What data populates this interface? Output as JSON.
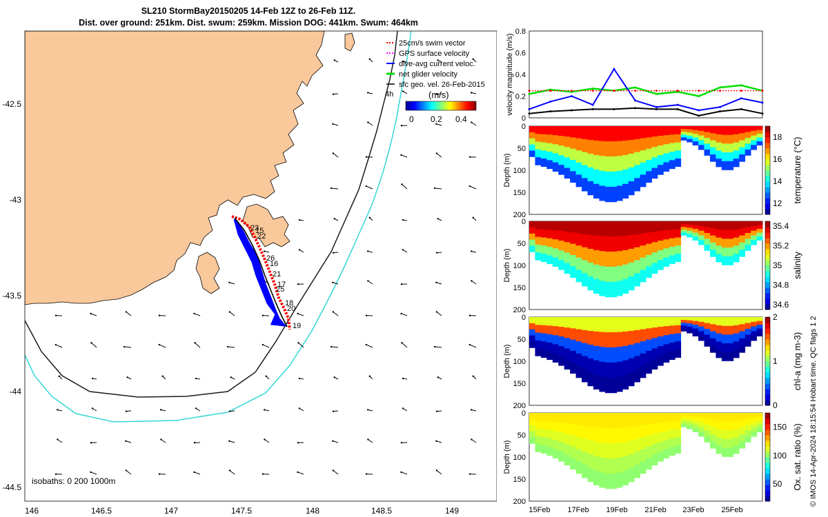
{
  "title": {
    "line1": "SL210 StormBay20150205 14-Feb 12Z to 26-Feb 11Z.",
    "line2": "Dist. over ground: 251km. Dist. swum: 259km. Mission DOG: 441km. Swum: 464km"
  },
  "colors": {
    "land": "#f9c89b",
    "isobath_200": "#1a1a1a",
    "isobath_1000": "#33d6d6",
    "track_red": "#ff0000",
    "track_blue": "#0000ff",
    "track_black": "#000000",
    "velocity_green": "#00dd00",
    "velocity_blue": "#0000ff",
    "velocity_black": "#000000",
    "gps_magenta": "#ff00ff"
  },
  "map": {
    "legend": {
      "swim_vector": "25cm/s swim vector",
      "gps": "GPS surface velocity",
      "dive_avg": "dive-avg current veloc.",
      "net": "net glider velocity",
      "sfc_geo": "sfc geo. vel. 26-Feb-2015",
      "timestamp": "4h"
    },
    "colorbar": {
      "label": "(m/s)",
      "ticks": [
        "0",
        "0.2",
        "0.4"
      ],
      "colormap": "jet"
    },
    "isobath_label": "isobaths: 0   200  1000m",
    "x_ticks": [
      "146",
      "146.5",
      "147",
      "147.5",
      "148",
      "148.5",
      "149"
    ],
    "y_ticks": [
      "-42.5",
      "-43",
      "-43.5",
      "-44",
      "-44.5"
    ],
    "day_labels": [
      "23",
      "15",
      "22",
      "26",
      "16",
      "21",
      "17",
      "25",
      "18",
      "20",
      "19"
    ]
  },
  "chart_data": [
    {
      "type": "line",
      "title": "",
      "ylabel": "velocity magnitude (m/s)",
      "ylim": [
        0,
        0.8
      ],
      "yticks": [
        "0",
        "0.2",
        "0.4",
        "0.6",
        "0.8"
      ],
      "x": [
        "15-Feb",
        "16-Feb",
        "17-Feb",
        "18-Feb",
        "19-Feb",
        "20-Feb",
        "21-Feb",
        "22-Feb",
        "23-Feb",
        "24-Feb",
        "25-Feb",
        "26-Feb"
      ],
      "series": [
        {
          "name": "net glider velocity",
          "color": "#00dd00",
          "values": [
            0.22,
            0.26,
            0.24,
            0.27,
            0.25,
            0.28,
            0.22,
            0.24,
            0.2,
            0.28,
            0.3,
            0.25
          ]
        },
        {
          "name": "dive-avg current veloc.",
          "color": "#0000ff",
          "values": [
            0.08,
            0.15,
            0.2,
            0.12,
            0.45,
            0.16,
            0.1,
            0.12,
            0.07,
            0.1,
            0.18,
            0.14
          ]
        },
        {
          "name": "sfc geo. vel. 26-Feb-2015",
          "color": "#000000",
          "values": [
            0.04,
            0.06,
            0.07,
            0.08,
            0.08,
            0.09,
            0.08,
            0.08,
            0.02,
            0.06,
            0.08,
            0.04
          ]
        },
        {
          "name": "25cm/s swim vector",
          "color": "#ff0000",
          "values": [
            0.25,
            0.25,
            0.25,
            0.25,
            0.25,
            0.25,
            0.25,
            0.25,
            0.25,
            0.25,
            0.25,
            0.25
          ]
        }
      ]
    },
    {
      "type": "heatmap",
      "ylabel": "Depth (m)",
      "yticks": [
        "0",
        "50",
        "100",
        "150",
        "200"
      ],
      "colorbar_label": "temperature (°C)",
      "colorbar_ticks": [
        "12",
        "14",
        "16",
        "18"
      ],
      "clim": [
        11,
        19
      ],
      "values": [
        18,
        17,
        15.5,
        14,
        12.5
      ]
    },
    {
      "type": "heatmap",
      "ylabel": "Depth (m)",
      "yticks": [
        "0",
        "50",
        "100",
        "150",
        "200"
      ],
      "colorbar_label": "salinity",
      "colorbar_ticks": [
        "34.6",
        "34.8",
        "35",
        "35.2",
        "35.4"
      ],
      "clim": [
        34.55,
        35.45
      ],
      "values": [
        35.4,
        35.35,
        35.2,
        35.0,
        34.9
      ]
    },
    {
      "type": "heatmap",
      "ylabel": "Depth (m)",
      "yticks": [
        "0",
        "50",
        "100",
        "150",
        "200"
      ],
      "colorbar_label": "chl-a (mg m-3)",
      "colorbar_ticks": [
        "0",
        "1",
        "2"
      ],
      "clim": [
        0,
        2
      ],
      "values": [
        1.2,
        1.6,
        0.4,
        0.1,
        0.05
      ]
    },
    {
      "type": "heatmap",
      "ylabel": "Depth (m)",
      "yticks": [
        "0",
        "50",
        "100",
        "150",
        "200"
      ],
      "colorbar_label": "Ox. sat. ratio (%)",
      "colorbar_ticks": [
        "50",
        "100",
        "150"
      ],
      "clim": [
        20,
        175
      ],
      "values": [
        120,
        118,
        112,
        105,
        100
      ],
      "xticks": [
        "15Feb",
        "17Feb",
        "19Feb",
        "21Feb",
        "23Feb",
        "25Feb"
      ]
    }
  ],
  "footer": "© IMOS 14-Apr-2024 18:15:54 Hobart time. QC flags 1  2"
}
